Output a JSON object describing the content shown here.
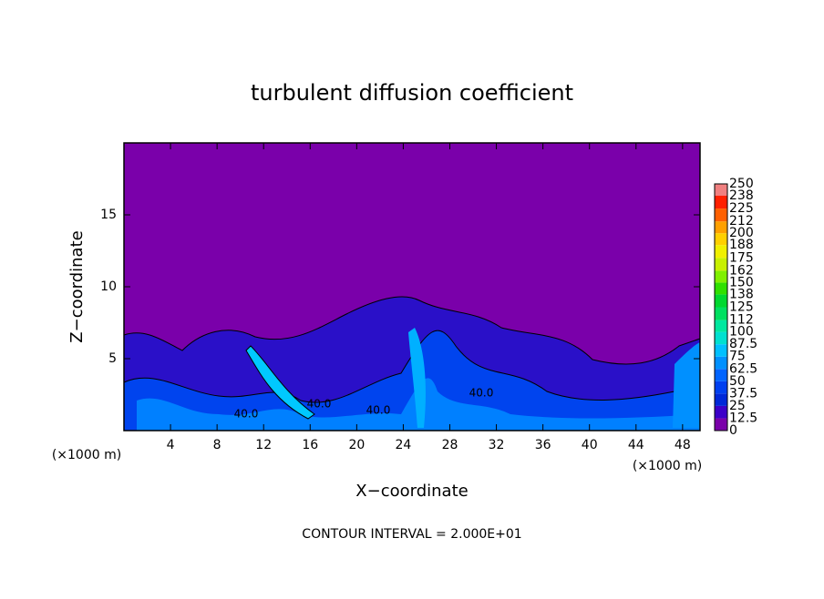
{
  "chart_data": {
    "type": "contour",
    "title": "turbulent diffusion coefficient",
    "subtitle": "CONTOUR INTERVAL = 2.000E+01",
    "x_label": "X−coordinate",
    "y_label": "Z−coordinate",
    "x_unit": "(×1000 m)",
    "y_unit": "(×1000 m)",
    "xlim": [
      0,
      49.5
    ],
    "xticks": [
      4,
      8,
      12,
      16,
      20,
      24,
      28,
      32,
      36,
      40,
      44,
      48
    ],
    "ylim": [
      0,
      20
    ],
    "yticks": [
      5,
      10,
      15
    ],
    "annotations": [
      "40.0",
      "40.0",
      "40.0",
      "40.0"
    ],
    "colorbar": {
      "levels": [
        0,
        12.5,
        25,
        37.5,
        50,
        62.5,
        75,
        87.5,
        100,
        112,
        125,
        138,
        150,
        162,
        175,
        188,
        200,
        212,
        225,
        238,
        250
      ],
      "colors": [
        "#7a00aa",
        "#3c00c8",
        "#0028d8",
        "#0040f0",
        "#0064ff",
        "#0090ff",
        "#00c0ff",
        "#00e0d0",
        "#00e8a0",
        "#00e060",
        "#00d830",
        "#30e000",
        "#80f000",
        "#c8f000",
        "#f0f000",
        "#ffd000",
        "#ffa000",
        "#ff6000",
        "#ff2000",
        "#f08080"
      ]
    }
  }
}
